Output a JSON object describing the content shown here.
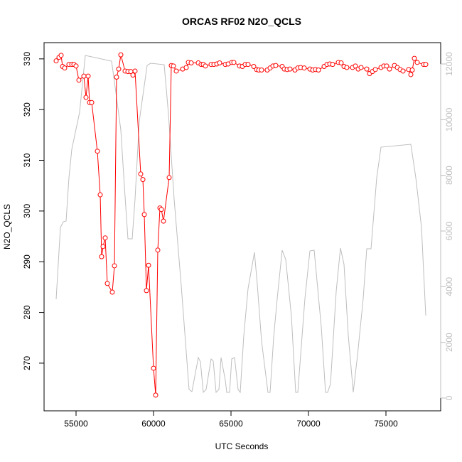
{
  "chart_data": {
    "type": "line",
    "title": "ORCAS RF02 N2O_QCLS",
    "x_label": "UTC Seconds",
    "y_label": "N2O_QCLS",
    "xlim": [
      52936,
      78532
    ],
    "xticks": [
      55000,
      60000,
      65000,
      70000,
      75000
    ],
    "ylim": [
      260.6,
      333.2
    ],
    "yticks": [
      270,
      280,
      290,
      300,
      310,
      320,
      330
    ],
    "y2lim": [
      -460,
      12766
    ],
    "y2ticks": [
      0,
      2000,
      4000,
      6000,
      8000,
      10000,
      12000
    ],
    "series": [
      {
        "color": "#ff0000",
        "marker": "circle",
        "x": [
          53716,
          53899,
          54037,
          54128,
          54266,
          54541,
          54725,
          54862,
          55000,
          55183,
          55505,
          55642,
          55780,
          55872,
          56009,
          56376,
          56560,
          56651,
          56743,
          56881,
          57018,
          57339,
          57477,
          57615,
          57752,
          57890,
          58165,
          58349,
          58532,
          58670,
          58807,
          59174,
          59312,
          59404,
          59541,
          59679,
          60000,
          60138,
          60275,
          60413,
          60505,
          60642,
          61009,
          61147,
          61284,
          61468,
          61881,
          62110,
          62248,
          62431,
          62890,
          63073,
          63211,
          63349,
          63716,
          63899,
          64083,
          64266,
          64633,
          64817,
          65046,
          65183,
          65550,
          65734,
          65917,
          66101,
          66468,
          66651,
          66789,
          66972,
          67339,
          67523,
          67706,
          67890,
          68303,
          68440,
          68624,
          68807,
          69128,
          69312,
          69495,
          69725,
          70092,
          70275,
          70459,
          70642,
          71009,
          71193,
          71376,
          71560,
          71927,
          72110,
          72294,
          72477,
          72844,
          73028,
          73211,
          73394,
          73761,
          73945,
          74128,
          74312,
          74679,
          74862,
          75046,
          75229,
          75550,
          75734,
          75917,
          76101,
          76468,
          76606,
          76697,
          76835,
          77018,
          77431,
          77569
        ],
        "values": [
          329.6,
          330.3,
          330.7,
          328.5,
          328.2,
          328.9,
          328.9,
          328.9,
          328.6,
          325.8,
          326.6,
          322.4,
          326.6,
          321.4,
          321.4,
          311.8,
          303.2,
          291.0,
          293.0,
          294.7,
          285.7,
          284.0,
          289.2,
          326.4,
          328.0,
          330.8,
          327.6,
          327.5,
          327.5,
          326.8,
          327.6,
          307.3,
          306.2,
          299.3,
          284.3,
          289.3,
          269.0,
          263.7,
          292.3,
          300.6,
          300.3,
          298.0,
          306.6,
          328.7,
          328.6,
          327.6,
          328.0,
          328.3,
          329.3,
          329.2,
          329.2,
          328.9,
          328.9,
          328.6,
          328.9,
          328.9,
          329.0,
          329.2,
          328.9,
          329.0,
          329.3,
          329.3,
          328.6,
          328.5,
          328.9,
          328.9,
          328.5,
          327.9,
          327.8,
          327.8,
          327.8,
          328.2,
          328.6,
          328.7,
          328.5,
          328.0,
          327.9,
          328.0,
          327.8,
          328.2,
          328.3,
          328.2,
          328.0,
          327.8,
          327.9,
          327.8,
          328.5,
          328.9,
          329.0,
          328.9,
          329.3,
          329.2,
          328.5,
          328.3,
          328.3,
          328.6,
          328.0,
          328.3,
          328.0,
          327.1,
          327.5,
          327.9,
          328.3,
          328.6,
          328.6,
          328.0,
          328.7,
          328.3,
          327.9,
          327.6,
          327.9,
          326.9,
          327.8,
          330.1,
          329.3,
          328.9,
          328.9
        ]
      },
      {
        "color": "#bebebe",
        "axis": "y2",
        "x": [
          53716,
          53991,
          54174,
          54358,
          54541,
          54725,
          55229,
          55596,
          57294,
          57569,
          57890,
          58119,
          58349,
          58624,
          58807,
          59083,
          59587,
          59817,
          60688,
          60963,
          61330,
          61789,
          62294,
          62477,
          62890,
          63028,
          63211,
          63394,
          63716,
          63853,
          64037,
          64220,
          64358,
          64633,
          64725,
          64908,
          65046,
          65229,
          65459,
          65596,
          65826,
          66101,
          66514,
          66697,
          66972,
          67385,
          67523,
          67752,
          67982,
          68303,
          68532,
          68899,
          69174,
          69312,
          69771,
          70092,
          70367,
          70826,
          71101,
          71239,
          71422,
          71789,
          72064,
          72294,
          72569,
          72890,
          73165,
          73532,
          73761,
          74037,
          74404,
          74679,
          76606,
          76927,
          77294,
          77569
        ],
        "values": [
          3549,
          6127,
          6331,
          6357,
          7914,
          8935,
          10263,
          12306,
          12101,
          10978,
          9625,
          7608,
          5719,
          5719,
          7148,
          9957,
          11948,
          12024,
          11973,
          10212,
          7148,
          4034,
          306,
          230,
          1455,
          1302,
          204,
          306,
          1404,
          1328,
          204,
          306,
          1455,
          638,
          204,
          204,
          1404,
          1455,
          306,
          204,
          2247,
          3932,
          5234,
          4085,
          2042,
          204,
          204,
          2170,
          3574,
          5310,
          4978,
          2936,
          204,
          204,
          3574,
          5285,
          5310,
          2553,
          204,
          204,
          511,
          3829,
          5387,
          4800,
          2247,
          204,
          1532,
          3574,
          5361,
          5361,
          7914,
          9012,
          9114,
          7914,
          6127,
          2961
        ]
      }
    ]
  }
}
